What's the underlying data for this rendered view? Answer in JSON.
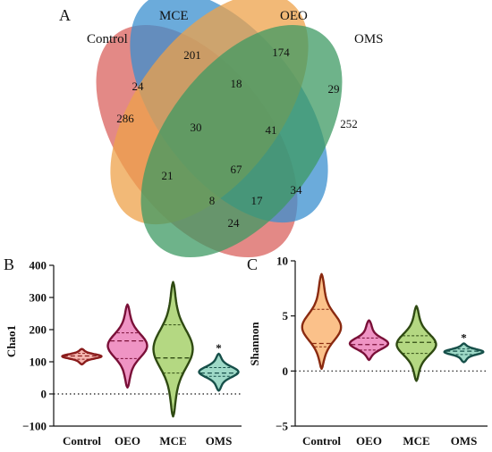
{
  "panels": {
    "a": "A",
    "b": "B",
    "c": "C"
  },
  "chart_data": [
    {
      "type": "venn",
      "sets": [
        {
          "name": "Control",
          "color": "#d9625e"
        },
        {
          "name": "MCE",
          "color": "#3a8fcf"
        },
        {
          "name": "OEO",
          "color": "#eea24a"
        },
        {
          "name": "OMS",
          "color": "#3e9a63"
        }
      ],
      "regions": [
        {
          "sets": [
            "Control"
          ],
          "value": 286
        },
        {
          "sets": [
            "MCE"
          ],
          "value": 201
        },
        {
          "sets": [
            "OEO"
          ],
          "value": 174
        },
        {
          "sets": [
            "OMS"
          ],
          "value": 252
        },
        {
          "sets": [
            "Control",
            "MCE"
          ],
          "value": 24
        },
        {
          "sets": [
            "MCE",
            "OEO"
          ],
          "value": 18
        },
        {
          "sets": [
            "OEO",
            "OMS"
          ],
          "value": 29
        },
        {
          "sets": [
            "Control",
            "MCE",
            "OEO"
          ],
          "value": 30
        },
        {
          "sets": [
            "MCE",
            "OEO",
            "OMS"
          ],
          "value": 41
        },
        {
          "sets": [
            "Control",
            "OEO"
          ],
          "value": 21
        },
        {
          "sets": [
            "Control",
            "MCE",
            "OEO",
            "OMS"
          ],
          "value": 67
        },
        {
          "sets": [
            "Control",
            "MCE",
            "OMS"
          ],
          "value": 8
        },
        {
          "sets": [
            "Control",
            "OEO",
            "OMS"
          ],
          "value": 17
        },
        {
          "sets": [
            "MCE",
            "OMS"
          ],
          "value": 34
        },
        {
          "sets": [
            "Control",
            "OMS"
          ],
          "value": 24
        }
      ]
    },
    {
      "type": "violin",
      "ylabel": "Chao1",
      "ylim": [
        -100,
        400
      ],
      "yticks": [
        -100,
        0,
        100,
        200,
        300,
        400
      ],
      "reference_line": 0,
      "categories": [
        "Control",
        "OEO",
        "MCE",
        "OMS"
      ],
      "groups": [
        {
          "category": "Control",
          "fill": "#f6b7b1",
          "stroke": "#8a1c1c",
          "min": 92,
          "max": 140,
          "q1": 108,
          "median": 118,
          "q3": 126,
          "significance": ""
        },
        {
          "category": "OEO",
          "fill": "#ef94c4",
          "stroke": "#7a1038",
          "min": 20,
          "max": 278,
          "q1": 110,
          "median": 165,
          "q3": 190,
          "significance": ""
        },
        {
          "category": "MCE",
          "fill": "#b4d882",
          "stroke": "#2f4a12",
          "min": -70,
          "max": 348,
          "q1": 65,
          "median": 112,
          "q3": 215,
          "significance": ""
        },
        {
          "category": "OMS",
          "fill": "#9ed9c7",
          "stroke": "#17504a",
          "min": 10,
          "max": 125,
          "q1": 55,
          "median": 65,
          "q3": 82,
          "significance": "*"
        }
      ]
    },
    {
      "type": "violin",
      "ylabel": "Shannon",
      "ylim": [
        -5,
        10
      ],
      "yticks": [
        -5,
        0,
        5,
        10
      ],
      "reference_line": 0,
      "categories": [
        "Control",
        "OEO",
        "MCE",
        "OMS"
      ],
      "groups": [
        {
          "category": "Control",
          "fill": "#fbc18a",
          "stroke": "#8a2a10",
          "min": 0.2,
          "max": 8.8,
          "q1": 2.2,
          "median": 2.5,
          "q3": 5.6,
          "significance": ""
        },
        {
          "category": "OEO",
          "fill": "#ef94c4",
          "stroke": "#7a1038",
          "min": 1.0,
          "max": 4.6,
          "q1": 1.9,
          "median": 2.4,
          "q3": 3.0,
          "significance": ""
        },
        {
          "category": "MCE",
          "fill": "#b4d882",
          "stroke": "#2f4a12",
          "min": -0.9,
          "max": 5.9,
          "q1": 1.6,
          "median": 2.6,
          "q3": 3.2,
          "significance": ""
        },
        {
          "category": "OMS",
          "fill": "#9ed9c7",
          "stroke": "#17504a",
          "min": 0.8,
          "max": 2.5,
          "q1": 1.5,
          "median": 1.8,
          "q3": 2.0,
          "significance": "*"
        }
      ]
    }
  ]
}
